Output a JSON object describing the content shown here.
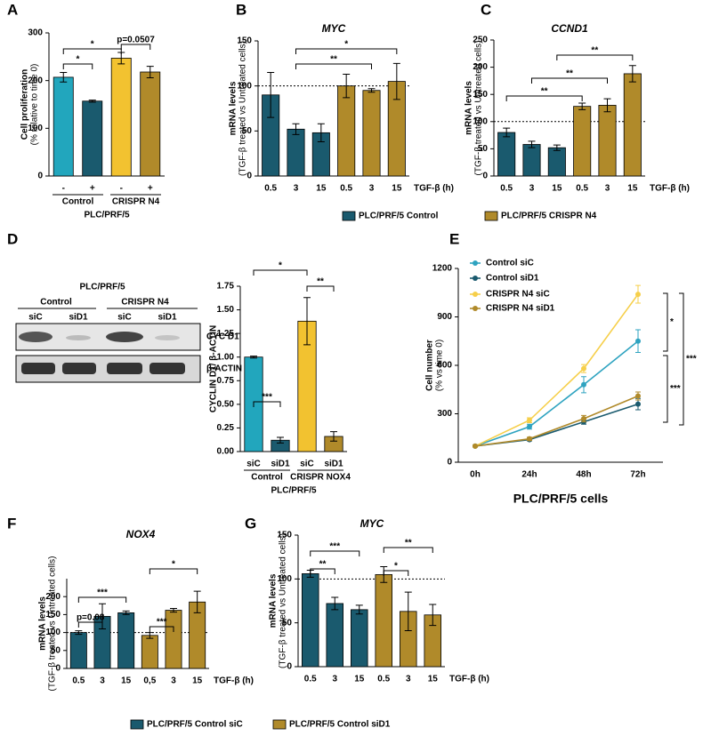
{
  "chart_data": [
    {
      "type": "bar",
      "label": "A",
      "ylabel": [
        "Cell proliferation",
        "(% relative to time 0)"
      ],
      "xlabel": "PLC/PRF/5",
      "categories": [
        "-",
        "+",
        "-",
        "+"
      ],
      "groups": [
        "Control",
        "CRISPR N4"
      ],
      "series": [
        {
          "colors": [
            "#22a6bd",
            "#1a5a6e",
            "#f2c230",
            "#b08a2a"
          ],
          "values": [
            207,
            157,
            247,
            218
          ],
          "errors": [
            10,
            2,
            12,
            12
          ]
        }
      ],
      "ylim": [
        0,
        300
      ],
      "yticks": [
        0,
        100,
        200,
        300
      ],
      "annotations": [
        "*",
        "*",
        "p=0.0507"
      ]
    },
    {
      "type": "bar",
      "label": "B",
      "title": "MYC",
      "ylabel": [
        "mRNA levels",
        "(TGF-β treated vs Untreated cells)"
      ],
      "x_title": "TGF-β (h)",
      "categories": [
        "0.5",
        "3",
        "15",
        "0.5",
        "3",
        "15"
      ],
      "series": [
        {
          "name": "PLC/PRF/5 Control",
          "color": "#1a5a6e",
          "values": [
            90,
            52,
            48,
            null,
            null,
            null
          ],
          "errors": [
            25,
            6,
            10,
            null,
            null,
            null
          ]
        },
        {
          "name": "PLC/PRF/5 CRISPR N4",
          "color": "#b08a2a",
          "values": [
            null,
            null,
            null,
            100,
            95,
            105
          ],
          "errors": [
            null,
            null,
            null,
            13,
            2,
            20
          ]
        }
      ],
      "ylim": [
        0,
        150
      ],
      "yticks": [
        0,
        50,
        100,
        150
      ],
      "refline": 100,
      "annotations": [
        "**",
        "*"
      ]
    },
    {
      "type": "bar",
      "label": "C",
      "title": "CCND1",
      "ylabel": [
        "mRNA levels",
        "(TGF-β treated vs Untreated cells)"
      ],
      "x_title": "TGF-β (h)",
      "categories": [
        "0.5",
        "3",
        "15",
        "0.5",
        "3",
        "15"
      ],
      "series": [
        {
          "color": "#1a5a6e",
          "values": [
            80,
            58,
            52,
            null,
            null,
            null
          ],
          "errors": [
            8,
            6,
            5,
            null,
            null,
            null
          ]
        },
        {
          "color": "#b08a2a",
          "values": [
            null,
            null,
            null,
            128,
            130,
            188
          ],
          "errors": [
            null,
            null,
            null,
            6,
            12,
            15
          ]
        }
      ],
      "ylim": [
        0,
        250
      ],
      "yticks": [
        0,
        50,
        100,
        150,
        200,
        250
      ],
      "refline": 100,
      "annotations": [
        "**",
        "**",
        "**"
      ]
    },
    {
      "type": "bar",
      "label": "D",
      "ylabel": [
        "CYCLIN D1/ β-ACTIN"
      ],
      "xlabel": "PLC/PRF/5",
      "categories": [
        "siC",
        "siD1",
        "siC",
        "siD1"
      ],
      "groups": [
        "Control",
        "CRISPR NOX4"
      ],
      "series": [
        {
          "colors": [
            "#22a6bd",
            "#1a5a6e",
            "#f2c230",
            "#b08a2a"
          ],
          "values": [
            1.0,
            0.12,
            1.38,
            0.16
          ],
          "errors": [
            0.01,
            0.03,
            0.25,
            0.05
          ]
        }
      ],
      "ylim": [
        0,
        1.75
      ],
      "yticks": [
        {
          "value": 0,
          "label": "0.00"
        },
        {
          "value": 0.25,
          "label": "0.25"
        },
        {
          "value": 0.5,
          "label": "0.50"
        },
        {
          "value": 0.75,
          "label": "0.75"
        },
        {
          "value": 1,
          "label": "1.00"
        },
        {
          "value": 1.25,
          "label": "1.25"
        },
        {
          "value": 1.5,
          "label": "1.50"
        },
        {
          "value": 1.75,
          "label": "1.75"
        }
      ],
      "annotations": [
        "***",
        "*",
        "**"
      ]
    },
    {
      "type": "line",
      "label": "E",
      "ylabel": [
        "Cell number",
        "(% vs time 0)"
      ],
      "xlabel": "PLC/PRF/5 cells",
      "categories": [
        "0h",
        "24h",
        "48h",
        "72h"
      ],
      "series": [
        {
          "name": "Control siC",
          "color": "#2ea3c0",
          "values": [
            100,
            220,
            480,
            750
          ],
          "errors": [
            5,
            15,
            50,
            70
          ]
        },
        {
          "name": "Control siD1",
          "color": "#1a5a6e",
          "values": [
            100,
            140,
            250,
            360
          ],
          "errors": [
            5,
            8,
            15,
            35
          ]
        },
        {
          "name": "CRISPR N4 siC",
          "color": "#f6cf4a",
          "values": [
            100,
            260,
            580,
            1040
          ],
          "errors": [
            5,
            15,
            25,
            55
          ]
        },
        {
          "name": "CRISPR N4 siD1",
          "color": "#b08a2a",
          "values": [
            100,
            145,
            270,
            410
          ],
          "errors": [
            5,
            10,
            20,
            25
          ]
        }
      ],
      "ylim": [
        0,
        1200
      ],
      "yticks": [
        0,
        300,
        600,
        900,
        1200
      ],
      "annotations": [
        "*",
        "***",
        "***"
      ]
    },
    {
      "type": "bar",
      "label": "F",
      "title": "NOX4",
      "ylabel": [
        "mRNA levels",
        "(TGF-β treated vs Untreated cells)"
      ],
      "x_title": "TGF-β (h)",
      "categories": [
        "0.5",
        "3",
        "15",
        "0,5",
        "3",
        "15"
      ],
      "series": [
        {
          "name": "PLC/PRF/5 Control siC",
          "color": "#1a5a6e",
          "values": [
            100,
            145,
            155,
            null,
            null,
            null
          ],
          "errors": [
            5,
            35,
            5,
            null,
            null,
            null
          ]
        },
        {
          "name": "PLC/PRF/5 Control siD1",
          "color": "#b08a2a",
          "values": [
            null,
            null,
            null,
            92,
            162,
            185
          ],
          "errors": [
            null,
            null,
            null,
            8,
            5,
            30
          ]
        }
      ],
      "ylim": [
        0,
        250
      ],
      "yticks": [
        0,
        50,
        100,
        150,
        200
      ],
      "refline": 100,
      "annotations": [
        "p=0.08",
        "***",
        "***",
        "*"
      ]
    },
    {
      "type": "bar",
      "label": "G",
      "title": "MYC",
      "ylabel": [
        "mRNA levels",
        "(TGF-β treated vs Untreated cells)"
      ],
      "x_title": "TGF-β (h)",
      "categories": [
        "0.5",
        "3",
        "15",
        "0.5",
        "3",
        "15"
      ],
      "series": [
        {
          "color": "#1a5a6e",
          "values": [
            106,
            72,
            65,
            null,
            null,
            null
          ],
          "errors": [
            4,
            7,
            5,
            null,
            null,
            null
          ]
        },
        {
          "color": "#b08a2a",
          "values": [
            null,
            null,
            null,
            105,
            63,
            59
          ],
          "errors": [
            null,
            null,
            null,
            9,
            22,
            12
          ]
        }
      ],
      "ylim": [
        0,
        150
      ],
      "yticks": [
        0,
        50,
        100,
        150
      ],
      "refline": 100,
      "annotations": [
        "**",
        "***",
        "*",
        "**"
      ]
    }
  ],
  "blot": {
    "cell_line": "PLC/PRF/5",
    "groups": [
      "Control",
      "CRISPR N4"
    ],
    "lanes": [
      "siC",
      "siD1",
      "siC",
      "siD1"
    ],
    "bands": [
      "CYC D1",
      "β-ACTIN"
    ]
  }
}
